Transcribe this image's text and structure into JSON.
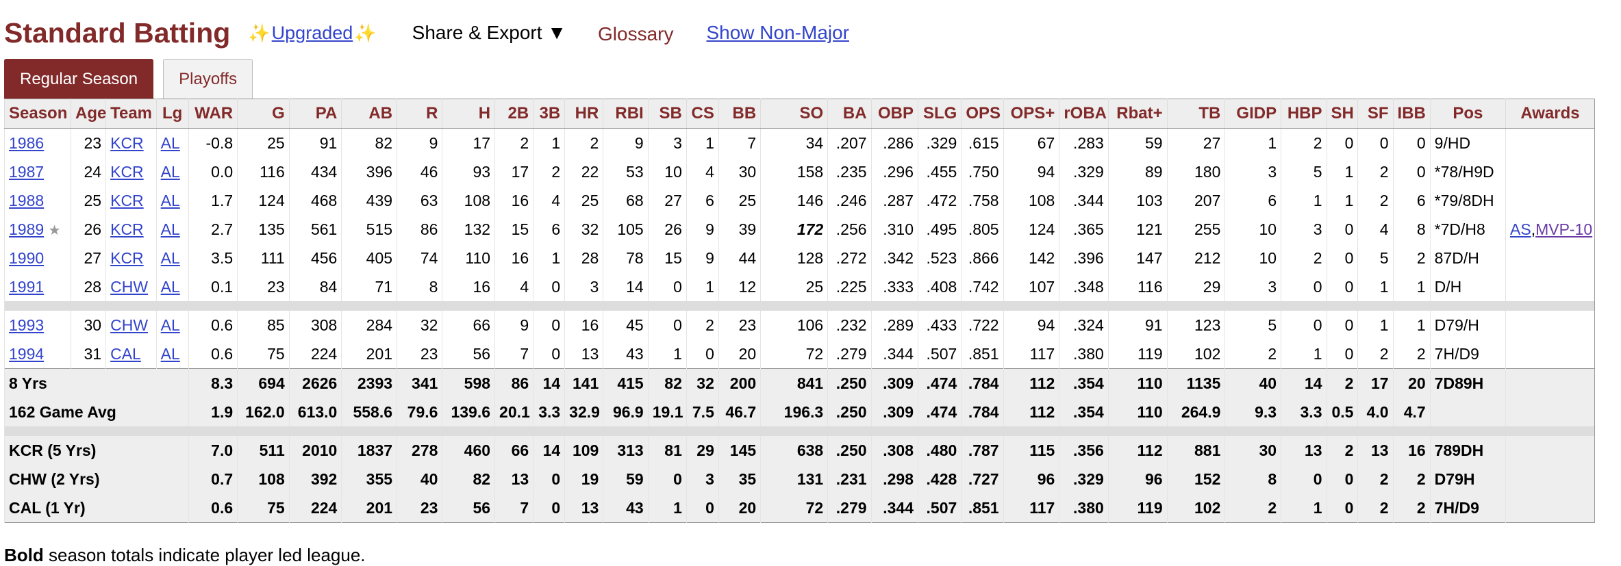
{
  "header": {
    "title": "Standard Batting",
    "upgraded_label": "Upgraded",
    "share_export_label": "Share & Export",
    "share_export_caret": "▼",
    "glossary_label": "Glossary",
    "show_nonmajor_label": "Show Non-Major"
  },
  "tabs": [
    {
      "label": "Regular Season",
      "active": true
    },
    {
      "label": "Playoffs",
      "active": false
    }
  ],
  "table": {
    "columns": [
      "Season",
      "Age",
      "Team",
      "Lg",
      "WAR",
      "G",
      "PA",
      "AB",
      "R",
      "H",
      "2B",
      "3B",
      "HR",
      "RBI",
      "SB",
      "CS",
      "BB",
      "SO",
      "BA",
      "OBP",
      "SLG",
      "OPS",
      "OPS+",
      "rOBA",
      "Rbat+",
      "TB",
      "GIDP",
      "HBP",
      "SH",
      "SF",
      "IBB",
      "Pos",
      "Awards"
    ],
    "season_rows": [
      [
        "1986",
        "23",
        "KCR",
        "AL",
        "-0.8",
        "25",
        "91",
        "82",
        "9",
        "17",
        "2",
        "1",
        "2",
        "9",
        "3",
        "1",
        "7",
        "34",
        ".207",
        ".286",
        ".329",
        ".615",
        "67",
        ".283",
        "59",
        "27",
        "1",
        "2",
        "0",
        "0",
        "0",
        "9/HD",
        ""
      ],
      [
        "1987",
        "24",
        "KCR",
        "AL",
        "0.0",
        "116",
        "434",
        "396",
        "46",
        "93",
        "17",
        "2",
        "22",
        "53",
        "10",
        "4",
        "30",
        "158",
        ".235",
        ".296",
        ".455",
        ".750",
        "94",
        ".329",
        "89",
        "180",
        "3",
        "5",
        "1",
        "2",
        "0",
        "*78/H9D",
        ""
      ],
      [
        "1988",
        "25",
        "KCR",
        "AL",
        "1.7",
        "124",
        "468",
        "439",
        "63",
        "108",
        "16",
        "4",
        "25",
        "68",
        "27",
        "6",
        "25",
        "146",
        ".246",
        ".287",
        ".472",
        ".758",
        "108",
        ".344",
        "103",
        "207",
        "6",
        "1",
        "1",
        "2",
        "6",
        "*79/8DH",
        ""
      ],
      [
        "1989",
        "26",
        "KCR",
        "AL",
        "2.7",
        "135",
        "561",
        "515",
        "86",
        "132",
        "15",
        "6",
        "32",
        "105",
        "26",
        "9",
        "39",
        "172",
        ".256",
        ".310",
        ".495",
        ".805",
        "124",
        ".365",
        "121",
        "255",
        "10",
        "3",
        "0",
        "4",
        "8",
        "*7D/H8",
        "AS,MVP-10"
      ],
      [
        "1990",
        "27",
        "KCR",
        "AL",
        "3.5",
        "111",
        "456",
        "405",
        "74",
        "110",
        "16",
        "1",
        "28",
        "78",
        "15",
        "9",
        "44",
        "128",
        ".272",
        ".342",
        ".523",
        ".866",
        "142",
        ".396",
        "147",
        "212",
        "10",
        "2",
        "0",
        "5",
        "2",
        "87D/H",
        ""
      ],
      [
        "1991",
        "28",
        "CHW",
        "AL",
        "0.1",
        "23",
        "84",
        "71",
        "8",
        "16",
        "4",
        "0",
        "3",
        "14",
        "0",
        "1",
        "12",
        "25",
        ".225",
        ".333",
        ".408",
        ".742",
        "107",
        ".348",
        "116",
        "29",
        "3",
        "0",
        "0",
        "1",
        "1",
        "D/H",
        ""
      ]
    ],
    "season_rows_2": [
      [
        "1993",
        "30",
        "CHW",
        "AL",
        "0.6",
        "85",
        "308",
        "284",
        "32",
        "66",
        "9",
        "0",
        "16",
        "45",
        "0",
        "2",
        "23",
        "106",
        ".232",
        ".289",
        ".433",
        ".722",
        "94",
        ".324",
        "91",
        "123",
        "5",
        "0",
        "0",
        "1",
        "1",
        "D79/H",
        ""
      ],
      [
        "1994",
        "31",
        "CAL",
        "AL",
        "0.6",
        "75",
        "224",
        "201",
        "23",
        "56",
        "7",
        "0",
        "13",
        "43",
        "1",
        "0",
        "20",
        "72",
        ".279",
        ".344",
        ".507",
        ".851",
        "117",
        ".380",
        "119",
        "102",
        "2",
        "1",
        "0",
        "2",
        "2",
        "7H/D9",
        ""
      ]
    ],
    "star_symbol": "★",
    "led_league": {
      "season": "1989",
      "stat": "SO"
    },
    "career_rows": [
      {
        "label": "8 Yrs",
        "values": [
          "8.3",
          "694",
          "2626",
          "2393",
          "341",
          "598",
          "86",
          "14",
          "141",
          "415",
          "82",
          "32",
          "200",
          "841",
          ".250",
          ".309",
          ".474",
          ".784",
          "112",
          ".354",
          "110",
          "1135",
          "40",
          "14",
          "2",
          "17",
          "20",
          "7D89H"
        ]
      },
      {
        "label": "162 Game Avg",
        "values": [
          "1.9",
          "162.0",
          "613.0",
          "558.6",
          "79.6",
          "139.6",
          "20.1",
          "3.3",
          "32.9",
          "96.9",
          "19.1",
          "7.5",
          "46.7",
          "196.3",
          ".250",
          ".309",
          ".474",
          ".784",
          "112",
          ".354",
          "110",
          "264.9",
          "9.3",
          "3.3",
          "0.5",
          "4.0",
          "4.7",
          ""
        ]
      }
    ],
    "team_rows": [
      {
        "label": "KCR (5 Yrs)",
        "values": [
          "7.0",
          "511",
          "2010",
          "1837",
          "278",
          "460",
          "66",
          "14",
          "109",
          "313",
          "81",
          "29",
          "145",
          "638",
          ".250",
          ".308",
          ".480",
          ".787",
          "115",
          ".356",
          "112",
          "881",
          "30",
          "13",
          "2",
          "13",
          "16",
          "789DH"
        ]
      },
      {
        "label": "CHW (2 Yrs)",
        "values": [
          "0.7",
          "108",
          "392",
          "355",
          "40",
          "82",
          "13",
          "0",
          "19",
          "59",
          "0",
          "3",
          "35",
          "131",
          ".231",
          ".298",
          ".428",
          ".727",
          "96",
          ".329",
          "96",
          "152",
          "8",
          "0",
          "0",
          "2",
          "2",
          "D79H"
        ]
      },
      {
        "label": "CAL (1 Yr)",
        "values": [
          "0.6",
          "75",
          "224",
          "201",
          "23",
          "56",
          "7",
          "0",
          "13",
          "43",
          "1",
          "0",
          "20",
          "72",
          ".279",
          ".344",
          ".507",
          ".851",
          "117",
          ".380",
          "119",
          "102",
          "2",
          "1",
          "0",
          "2",
          "2",
          "7H/D9"
        ]
      }
    ]
  },
  "footnote": {
    "bold": "Bold",
    "rest": " season totals indicate player led league."
  },
  "colors": {
    "accent": "#822a2a",
    "link": "#3344cc",
    "award_link": "#6a3aa6"
  }
}
